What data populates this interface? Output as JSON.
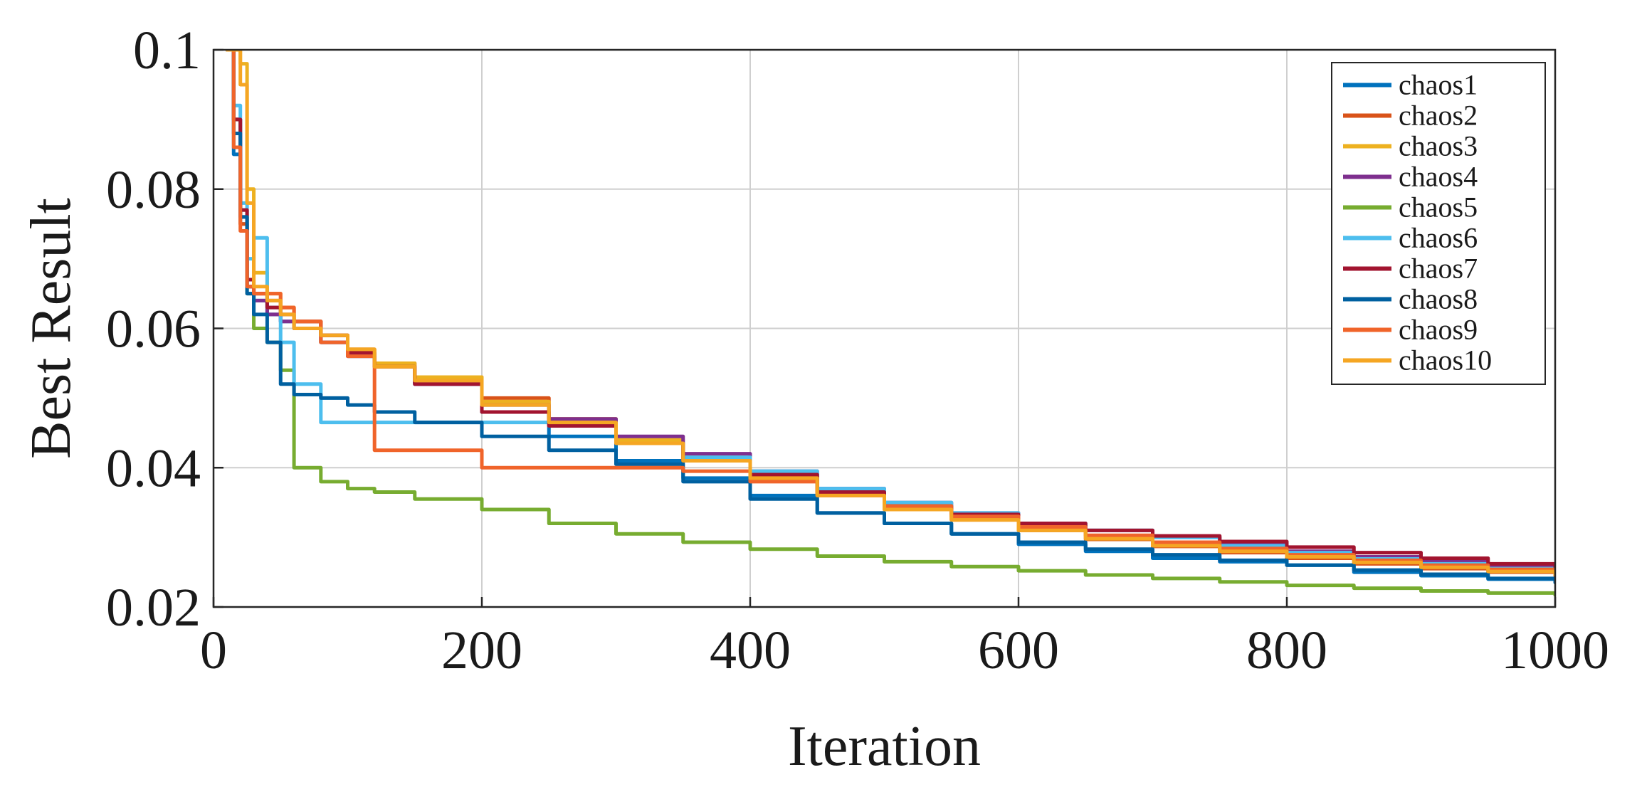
{
  "chart_data": {
    "type": "line",
    "title": "",
    "xlabel": "Iteration",
    "ylabel": "Best Result",
    "xlim": [
      0,
      1000
    ],
    "ylim": [
      0.02,
      0.1
    ],
    "xticks": [
      0,
      200,
      400,
      600,
      800,
      1000
    ],
    "xtick_labels": [
      "0",
      "200",
      "400",
      "600",
      "800",
      "1000"
    ],
    "yticks": [
      0.02,
      0.04,
      0.06,
      0.08,
      0.1
    ],
    "ytick_labels": [
      "0.02",
      "0.04",
      "0.06",
      "0.08",
      "0.1"
    ],
    "grid": true,
    "legend_position": "top-right",
    "x": [
      10,
      15,
      20,
      25,
      30,
      40,
      50,
      60,
      80,
      100,
      120,
      150,
      200,
      250,
      300,
      350,
      400,
      450,
      500,
      550,
      600,
      650,
      700,
      750,
      800,
      850,
      900,
      950,
      1000
    ],
    "series": [
      {
        "name": "chaos1",
        "color": "#0072BD",
        "values": [
          0.1,
          0.085,
          0.075,
          0.066,
          0.064,
          0.062,
          0.061,
          0.06,
          0.058,
          0.056,
          0.0545,
          0.052,
          0.048,
          0.0445,
          0.041,
          0.0385,
          0.036,
          0.0335,
          0.032,
          0.0305,
          0.029,
          0.028,
          0.027,
          0.0265,
          0.026,
          0.025,
          0.0245,
          0.024,
          0.0235
        ]
      },
      {
        "name": "chaos2",
        "color": "#D95319",
        "values": [
          0.1,
          0.09,
          0.075,
          0.066,
          0.065,
          0.064,
          0.063,
          0.061,
          0.059,
          0.057,
          0.055,
          0.053,
          0.05,
          0.047,
          0.0435,
          0.041,
          0.0385,
          0.036,
          0.034,
          0.0325,
          0.031,
          0.0297,
          0.0287,
          0.0278,
          0.027,
          0.0262,
          0.0255,
          0.025,
          0.0245
        ]
      },
      {
        "name": "chaos3",
        "color": "#EDB120",
        "values": [
          0.1,
          0.1,
          0.098,
          0.08,
          0.068,
          0.065,
          0.063,
          0.061,
          0.059,
          0.057,
          0.055,
          0.053,
          0.0495,
          0.047,
          0.044,
          0.0415,
          0.039,
          0.0365,
          0.0345,
          0.033,
          0.0315,
          0.0302,
          0.0292,
          0.0283,
          0.0275,
          0.0267,
          0.026,
          0.0254,
          0.0248
        ]
      },
      {
        "name": "chaos4",
        "color": "#7E2F8E",
        "values": [
          0.1,
          0.09,
          0.076,
          0.066,
          0.064,
          0.062,
          0.061,
          0.06,
          0.058,
          0.056,
          0.0545,
          0.052,
          0.049,
          0.047,
          0.0445,
          0.042,
          0.0395,
          0.037,
          0.035,
          0.0335,
          0.032,
          0.031,
          0.03,
          0.029,
          0.028,
          0.0272,
          0.0265,
          0.0258,
          0.0252
        ]
      },
      {
        "name": "chaos5",
        "color": "#77AC30",
        "values": [
          0.1,
          0.09,
          0.077,
          0.065,
          0.06,
          0.058,
          0.054,
          0.04,
          0.038,
          0.037,
          0.0365,
          0.0355,
          0.034,
          0.032,
          0.0305,
          0.0293,
          0.0283,
          0.0273,
          0.0265,
          0.0258,
          0.0252,
          0.0246,
          0.0241,
          0.0236,
          0.0231,
          0.0227,
          0.0223,
          0.022,
          0.0217
        ]
      },
      {
        "name": "chaos6",
        "color": "#4DBEEE",
        "values": [
          0.1,
          0.092,
          0.078,
          0.07,
          0.073,
          0.063,
          0.058,
          0.052,
          0.0465,
          0.0465,
          0.0465,
          0.0465,
          0.0465,
          0.046,
          0.0435,
          0.0415,
          0.0395,
          0.037,
          0.035,
          0.0335,
          0.032,
          0.031,
          0.03,
          0.0288,
          0.0278,
          0.0269,
          0.0262,
          0.0255,
          0.025
        ]
      },
      {
        "name": "chaos7",
        "color": "#A2142F",
        "values": [
          0.1,
          0.09,
          0.077,
          0.067,
          0.065,
          0.063,
          0.062,
          0.061,
          0.059,
          0.0565,
          0.0545,
          0.052,
          0.048,
          0.046,
          0.0435,
          0.041,
          0.039,
          0.0365,
          0.0345,
          0.0333,
          0.032,
          0.031,
          0.0302,
          0.0294,
          0.0286,
          0.0278,
          0.027,
          0.0262,
          0.0255
        ]
      },
      {
        "name": "chaos8",
        "color": "#0060A0",
        "values": [
          0.1,
          0.088,
          0.076,
          0.065,
          0.062,
          0.058,
          0.052,
          0.0505,
          0.05,
          0.049,
          0.048,
          0.0465,
          0.0445,
          0.0425,
          0.0405,
          0.038,
          0.0355,
          0.0335,
          0.032,
          0.0305,
          0.0293,
          0.0283,
          0.0275,
          0.0267,
          0.026,
          0.0253,
          0.0247,
          0.0241,
          0.0236
        ]
      },
      {
        "name": "chaos9",
        "color": "#F0642A",
        "values": [
          0.1,
          0.086,
          0.074,
          0.066,
          0.065,
          0.065,
          0.063,
          0.061,
          0.058,
          0.056,
          0.0425,
          0.0425,
          0.04,
          0.04,
          0.04,
          0.0395,
          0.038,
          0.036,
          0.0345,
          0.033,
          0.0315,
          0.0303,
          0.0293,
          0.0284,
          0.0275,
          0.0267,
          0.026,
          0.0254,
          0.0248
        ]
      },
      {
        "name": "chaos10",
        "color": "#F5A623",
        "values": [
          0.1,
          0.1,
          0.095,
          0.078,
          0.066,
          0.064,
          0.062,
          0.06,
          0.059,
          0.057,
          0.0545,
          0.0525,
          0.049,
          0.0465,
          0.0435,
          0.041,
          0.0385,
          0.036,
          0.034,
          0.0325,
          0.031,
          0.0298,
          0.0288,
          0.028,
          0.0272,
          0.0264,
          0.0257,
          0.0251,
          0.0246
        ]
      }
    ]
  }
}
